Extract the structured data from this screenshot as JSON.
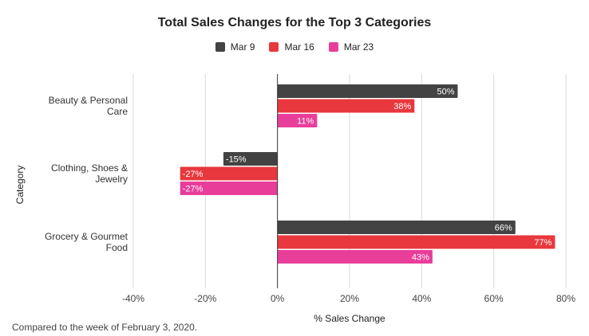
{
  "chart_data": {
    "type": "bar",
    "orientation": "horizontal",
    "title": "Total Sales Changes for the Top 3 Categories",
    "xlabel": "% Sales Change",
    "ylabel": "Category",
    "footnote": "Compared to the week of February 3, 2020.",
    "categories": [
      [
        "Beauty & Personal",
        "Care"
      ],
      [
        "Clothing, Shoes &",
        "Jewelry"
      ],
      [
        "Grocery & Gourmet",
        "Food"
      ]
    ],
    "series": [
      {
        "name": "Mar 9",
        "color": "#434343",
        "values": [
          50,
          -15,
          66
        ]
      },
      {
        "name": "Mar 16",
        "color": "#e8383d",
        "values": [
          38,
          -27,
          77
        ]
      },
      {
        "name": "Mar 23",
        "color": "#e83e9a",
        "values": [
          11,
          -27,
          43
        ]
      }
    ],
    "xlim": [
      -40,
      80
    ],
    "xticks": [
      -40,
      -20,
      0,
      20,
      40,
      60,
      80
    ],
    "tick_suffix": "%",
    "grid": true,
    "legend_position": "top"
  }
}
